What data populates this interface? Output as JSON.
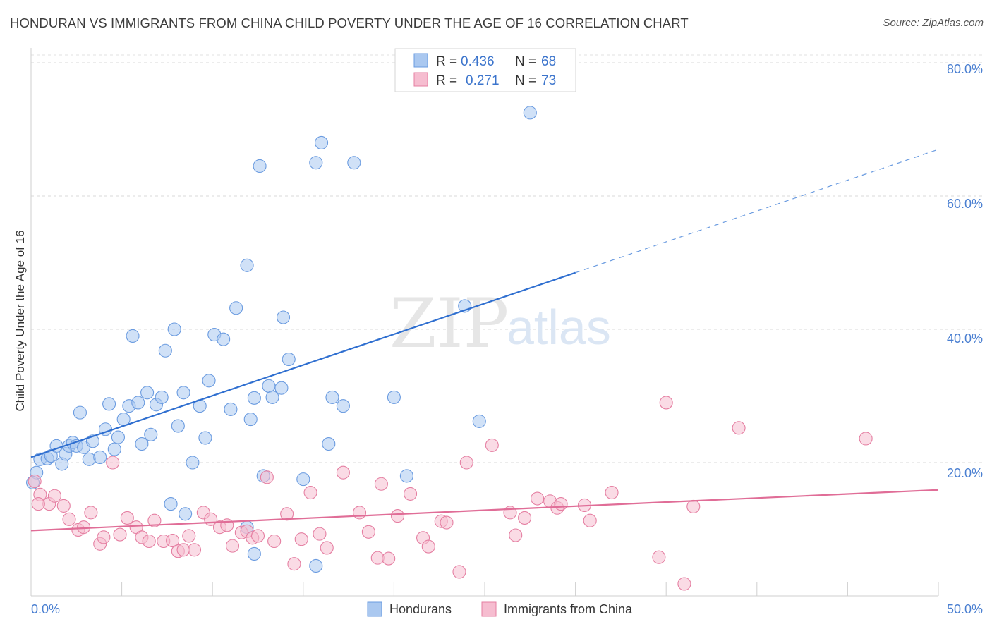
{
  "title": "HONDURAN VS IMMIGRANTS FROM CHINA CHILD POVERTY UNDER THE AGE OF 16 CORRELATION CHART",
  "source": "Source: ZipAtlas.com",
  "watermark": {
    "a": "ZIP",
    "b": "atlas"
  },
  "legend": {
    "r_label": "R =",
    "n_label": "N =",
    "rows": [
      {
        "r": "0.436",
        "n": "68",
        "color": "#aac8f0"
      },
      {
        "r": "0.271",
        "n": "73",
        "color": "#f6bdd0"
      }
    ]
  },
  "chart_data": {
    "type": "scatter",
    "xlabel": "",
    "ylabel": "Child Poverty Under the Age of 16",
    "xlim": [
      0,
      50
    ],
    "ylim": [
      0,
      80
    ],
    "y_ticks": [
      "80.0%",
      "60.0%",
      "40.0%",
      "20.0%"
    ],
    "x_ticks": [
      "0.0%",
      "50.0%"
    ],
    "grid": true,
    "legend_position": "top-center",
    "series": [
      {
        "name": "Hondurans",
        "color": "#6a9be0",
        "fill": "#aac8f0",
        "trend": {
          "x0": 0,
          "y0": 20.8,
          "x1": 30,
          "y1": 48.5,
          "dash_to_x": 50,
          "dash_to_y": 67
        },
        "points": [
          [
            0.3,
            18.5
          ],
          [
            0.5,
            20.5
          ],
          [
            0.9,
            20.6
          ],
          [
            1.1,
            21.0
          ],
          [
            1.4,
            22.5
          ],
          [
            1.7,
            19.8
          ],
          [
            1.9,
            21.3
          ],
          [
            2.1,
            22.5
          ],
          [
            2.3,
            23.0
          ],
          [
            2.5,
            22.5
          ],
          [
            2.7,
            27.5
          ],
          [
            2.9,
            22.3
          ],
          [
            3.2,
            20.5
          ],
          [
            3.4,
            23.2
          ],
          [
            3.8,
            20.8
          ],
          [
            4.1,
            25.0
          ],
          [
            4.3,
            28.8
          ],
          [
            4.6,
            22.0
          ],
          [
            4.8,
            23.8
          ],
          [
            5.1,
            26.5
          ],
          [
            5.4,
            28.5
          ],
          [
            5.6,
            39.0
          ],
          [
            5.9,
            29.0
          ],
          [
            6.1,
            22.8
          ],
          [
            6.4,
            30.5
          ],
          [
            6.6,
            24.2
          ],
          [
            6.9,
            28.7
          ],
          [
            7.2,
            29.8
          ],
          [
            7.4,
            36.8
          ],
          [
            7.7,
            13.8
          ],
          [
            7.9,
            40.0
          ],
          [
            8.1,
            25.5
          ],
          [
            8.4,
            30.5
          ],
          [
            8.5,
            12.3
          ],
          [
            8.9,
            20.0
          ],
          [
            9.3,
            28.5
          ],
          [
            9.6,
            23.7
          ],
          [
            9.8,
            32.3
          ],
          [
            10.1,
            39.2
          ],
          [
            10.6,
            38.5
          ],
          [
            11.0,
            28.0
          ],
          [
            11.3,
            43.2
          ],
          [
            11.9,
            49.6
          ],
          [
            12.1,
            26.5
          ],
          [
            12.3,
            29.7
          ],
          [
            12.6,
            64.5
          ],
          [
            12.8,
            18.0
          ],
          [
            13.1,
            31.5
          ],
          [
            13.3,
            29.8
          ],
          [
            13.8,
            31.2
          ],
          [
            13.9,
            41.8
          ],
          [
            14.2,
            35.5
          ],
          [
            15.0,
            17.5
          ],
          [
            15.7,
            65.0
          ],
          [
            16.0,
            68.0
          ],
          [
            16.4,
            22.8
          ],
          [
            16.6,
            29.8
          ],
          [
            17.2,
            28.5
          ],
          [
            17.8,
            65.0
          ],
          [
            11.9,
            10.3
          ],
          [
            12.3,
            6.3
          ],
          [
            15.7,
            4.5
          ],
          [
            20.0,
            29.8
          ],
          [
            20.7,
            18.0
          ],
          [
            23.9,
            43.5
          ],
          [
            24.7,
            26.2
          ],
          [
            27.5,
            72.5
          ],
          [
            0.1,
            17.0
          ]
        ]
      },
      {
        "name": "Immigrants from China",
        "color": "#e57fa2",
        "fill": "#f6bdd0",
        "trend": {
          "x0": 0,
          "y0": 9.8,
          "x1": 50,
          "y1": 15.9
        },
        "points": [
          [
            0.2,
            17.2
          ],
          [
            0.5,
            15.2
          ],
          [
            1.0,
            13.8
          ],
          [
            1.3,
            15.0
          ],
          [
            1.8,
            13.5
          ],
          [
            2.1,
            11.5
          ],
          [
            2.6,
            9.9
          ],
          [
            2.9,
            10.3
          ],
          [
            3.3,
            12.5
          ],
          [
            3.8,
            7.8
          ],
          [
            4.0,
            8.8
          ],
          [
            4.5,
            20.0
          ],
          [
            4.9,
            9.2
          ],
          [
            5.3,
            11.7
          ],
          [
            5.8,
            10.3
          ],
          [
            6.1,
            8.8
          ],
          [
            6.5,
            8.2
          ],
          [
            6.8,
            11.3
          ],
          [
            7.3,
            8.2
          ],
          [
            7.8,
            8.3
          ],
          [
            8.1,
            6.7
          ],
          [
            8.4,
            6.9
          ],
          [
            8.7,
            9.0
          ],
          [
            9.0,
            6.9
          ],
          [
            9.5,
            12.5
          ],
          [
            9.9,
            11.5
          ],
          [
            10.4,
            10.3
          ],
          [
            10.8,
            10.6
          ],
          [
            11.1,
            7.5
          ],
          [
            11.6,
            9.5
          ],
          [
            11.9,
            9.7
          ],
          [
            12.2,
            8.7
          ],
          [
            12.5,
            9.0
          ],
          [
            13.0,
            17.8
          ],
          [
            13.4,
            8.2
          ],
          [
            14.1,
            12.3
          ],
          [
            14.5,
            4.8
          ],
          [
            14.9,
            8.5
          ],
          [
            15.4,
            15.5
          ],
          [
            15.9,
            9.3
          ],
          [
            16.3,
            7.2
          ],
          [
            17.2,
            18.5
          ],
          [
            18.1,
            12.5
          ],
          [
            18.6,
            9.6
          ],
          [
            19.1,
            5.7
          ],
          [
            19.3,
            16.8
          ],
          [
            19.7,
            5.6
          ],
          [
            20.2,
            12.0
          ],
          [
            20.9,
            15.3
          ],
          [
            21.6,
            8.7
          ],
          [
            21.9,
            7.4
          ],
          [
            22.6,
            11.2
          ],
          [
            22.9,
            11.0
          ],
          [
            23.6,
            3.6
          ],
          [
            24.0,
            20.0
          ],
          [
            25.4,
            22.6
          ],
          [
            26.4,
            12.5
          ],
          [
            26.7,
            9.1
          ],
          [
            27.2,
            11.7
          ],
          [
            27.9,
            14.6
          ],
          [
            28.6,
            14.2
          ],
          [
            29.0,
            13.2
          ],
          [
            29.2,
            13.8
          ],
          [
            30.5,
            13.6
          ],
          [
            30.8,
            11.3
          ],
          [
            32.0,
            15.5
          ],
          [
            34.6,
            5.8
          ],
          [
            35.0,
            29.0
          ],
          [
            36.0,
            1.8
          ],
          [
            36.5,
            13.4
          ],
          [
            39.0,
            25.2
          ],
          [
            46.0,
            23.6
          ],
          [
            0.4,
            13.8
          ]
        ]
      }
    ]
  }
}
